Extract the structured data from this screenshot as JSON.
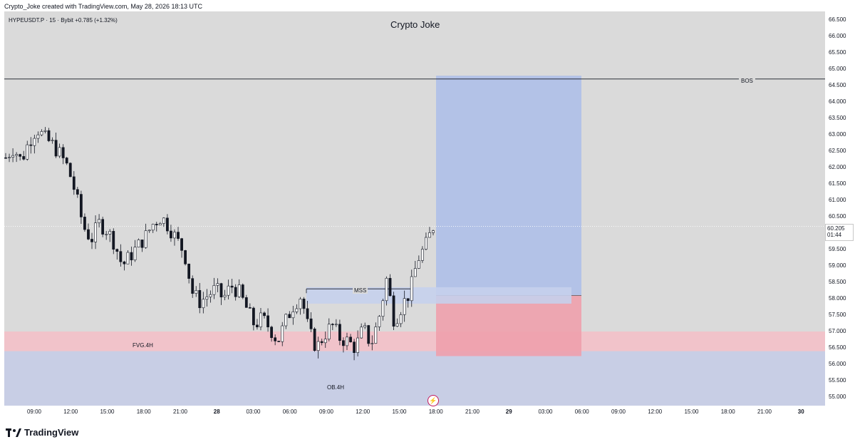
{
  "header": {
    "attribution": "Crypto_Joke created with TradingView.com, May 28, 2026 18:13 UTC"
  },
  "symbol_line": "HYPEUSDT.P · 15 · Bybit  +0.785 (+1.32%)",
  "watermark": "Crypto Joke",
  "price_badge": {
    "price": "60.205",
    "countdown": "01:44"
  },
  "annotations": {
    "bos": "BOS",
    "mss": "MSS",
    "fvg": "FVG.4H",
    "ob": "OB.4H"
  },
  "y_axis": {
    "ticks": [
      "66.500",
      "66.000",
      "65.500",
      "65.000",
      "64.500",
      "64.000",
      "63.500",
      "63.000",
      "62.500",
      "62.000",
      "61.500",
      "61.000",
      "60.500",
      "60.000",
      "59.500",
      "59.000",
      "58.500",
      "58.000",
      "57.500",
      "57.000",
      "56.500",
      "56.000",
      "55.500",
      "55.000"
    ],
    "range": [
      54.8,
      66.8
    ]
  },
  "x_axis": {
    "ticks": [
      {
        "label": "09:00",
        "bold": false
      },
      {
        "label": "12:00",
        "bold": false
      },
      {
        "label": "15:00",
        "bold": false
      },
      {
        "label": "18:00",
        "bold": false
      },
      {
        "label": "21:00",
        "bold": false
      },
      {
        "label": "28",
        "bold": true
      },
      {
        "label": "03:00",
        "bold": false
      },
      {
        "label": "06:00",
        "bold": false
      },
      {
        "label": "09:00",
        "bold": false
      },
      {
        "label": "12:00",
        "bold": false
      },
      {
        "label": "15:00",
        "bold": false
      },
      {
        "label": "18:00",
        "bold": false
      },
      {
        "label": "21:00",
        "bold": false
      },
      {
        "label": "29",
        "bold": true
      },
      {
        "label": "03:00",
        "bold": false
      },
      {
        "label": "06:00",
        "bold": false
      },
      {
        "label": "09:00",
        "bold": false
      },
      {
        "label": "12:00",
        "bold": false
      },
      {
        "label": "15:00",
        "bold": false
      },
      {
        "label": "18:00",
        "bold": false
      },
      {
        "label": "21:00",
        "bold": false
      },
      {
        "label": "30",
        "bold": true
      }
    ]
  },
  "chart_data": {
    "type": "candlestick",
    "levels": {
      "bos": 64.7,
      "mss": 58.3,
      "last_price": 60.205,
      "fvg_zone": [
        56.4,
        57.0
      ],
      "ob_zone": [
        54.8,
        56.4
      ],
      "target_zone": [
        58.1,
        64.8
      ],
      "stop_zone": [
        56.25,
        58.1
      ]
    },
    "close_path": [
      62.3,
      62.6,
      62.2,
      62.8,
      63.2,
      62.9,
      62.7,
      62.4,
      62.0,
      61.2,
      60.2,
      59.8,
      60.3,
      60.1,
      59.7,
      59.0,
      59.3,
      59.6,
      59.9,
      60.3,
      60.5,
      60.2,
      59.8,
      59.4,
      58.2,
      57.9,
      58.1,
      58.3,
      58.0,
      58.4,
      58.2,
      57.7,
      57.2,
      57.4,
      57.1,
      56.7,
      57.3,
      57.8,
      58.1,
      57.0,
      56.5,
      56.9,
      57.2,
      56.8,
      56.7,
      56.5,
      57.1,
      56.6,
      57.4,
      58.6,
      57.3,
      57.8,
      58.2,
      59.2,
      59.6,
      60.2
    ]
  },
  "branding": {
    "logo_text": "TradingView"
  },
  "colors": {
    "background": "#dadada",
    "candle": "#131722",
    "target_zone": "#aebfe8",
    "stop_zone": "#eea0ac",
    "fvg_zone": "#f3c0c8",
    "ob_zone": "#c7cde6"
  }
}
